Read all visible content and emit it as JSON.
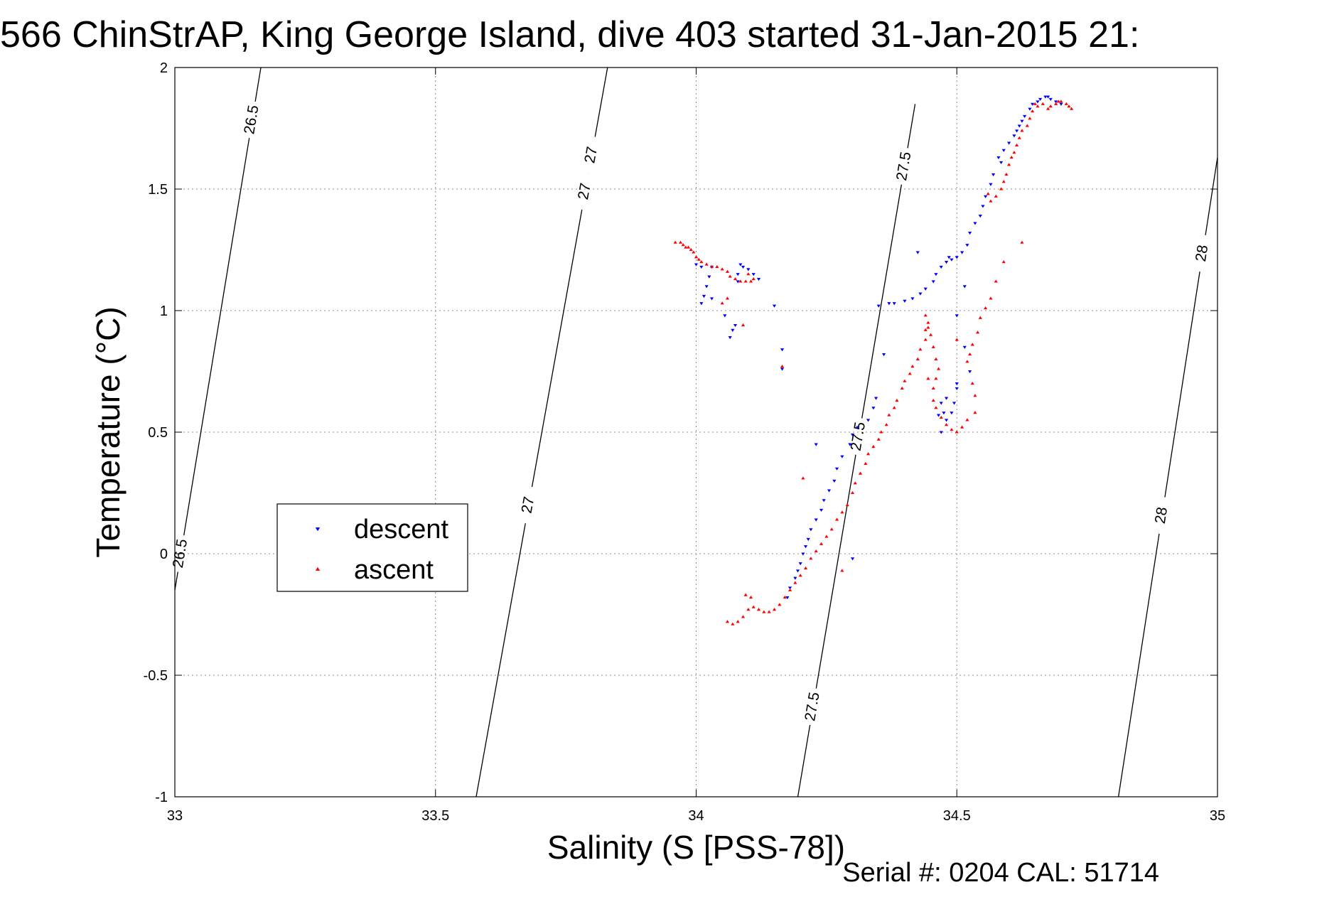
{
  "chart_data": {
    "type": "scatter",
    "title": "566 ChinStrAP, King George Island, dive 403 started 31-Jan-2015 21:",
    "xlabel": "Salinity (S [PSS-78])",
    "ylabel": "Temperature (°C)",
    "footer": "Serial #: 0204  CAL: 51714",
    "xlim": [
      33,
      35
    ],
    "ylim": [
      -1,
      2
    ],
    "xticks": [
      "33",
      "33.5",
      "34",
      "34.5",
      "35"
    ],
    "yticks": [
      "-1",
      "-0.5",
      "0",
      "0.5",
      "1",
      "1.5",
      "2"
    ],
    "grid": true,
    "legend_position": "middle-left",
    "contours": [
      {
        "label": "26.5",
        "points": [
          [
            33.0,
            -0.15
          ],
          [
            33.165,
            2.0
          ]
        ],
        "labels_at": [
          0.9,
          0.07
        ]
      },
      {
        "label": "27",
        "points": [
          [
            33.578,
            -1.0
          ],
          [
            33.83,
            2.0
          ]
        ],
        "labels_at": [
          0.83,
          0.4,
          0.88
        ]
      },
      {
        "label": "27.5",
        "points": [
          [
            34.195,
            -1.0
          ],
          [
            34.42,
            1.85
          ]
        ],
        "labels_at": [
          0.13,
          0.52,
          0.91
        ]
      },
      {
        "label": "28",
        "points": [
          [
            34.81,
            -1.0
          ],
          [
            35.0,
            1.63
          ]
        ],
        "labels_at": [
          0.44,
          0.85
        ]
      }
    ],
    "series": [
      {
        "name": "descent",
        "color": "#0000ff",
        "marker": "triangle-down",
        "points": [
          [
            34.67,
            1.88
          ],
          [
            34.675,
            1.88
          ],
          [
            34.68,
            1.87
          ],
          [
            34.66,
            1.87
          ],
          [
            34.69,
            1.86
          ],
          [
            34.655,
            1.86
          ],
          [
            34.7,
            1.85
          ],
          [
            34.645,
            1.85
          ],
          [
            34.64,
            1.83
          ],
          [
            34.63,
            1.8
          ],
          [
            34.625,
            1.78
          ],
          [
            34.62,
            1.76
          ],
          [
            34.615,
            1.74
          ],
          [
            34.61,
            1.72
          ],
          [
            34.6,
            1.69
          ],
          [
            34.59,
            1.66
          ],
          [
            34.58,
            1.63
          ],
          [
            34.585,
            1.61
          ],
          [
            34.57,
            1.56
          ],
          [
            34.565,
            1.52
          ],
          [
            34.555,
            1.47
          ],
          [
            34.55,
            1.43
          ],
          [
            34.545,
            1.39
          ],
          [
            34.535,
            1.36
          ],
          [
            34.525,
            1.32
          ],
          [
            34.52,
            1.27
          ],
          [
            34.51,
            1.24
          ],
          [
            34.5,
            1.22
          ],
          [
            34.49,
            1.21
          ],
          [
            34.485,
            1.22
          ],
          [
            34.48,
            1.2
          ],
          [
            34.47,
            1.18
          ],
          [
            34.46,
            1.15
          ],
          [
            34.455,
            1.12
          ],
          [
            34.44,
            1.09
          ],
          [
            34.43,
            1.07
          ],
          [
            34.415,
            1.05
          ],
          [
            34.4,
            1.04
          ],
          [
            34.38,
            1.03
          ],
          [
            34.37,
            1.03
          ],
          [
            34.35,
            1.02
          ],
          [
            34.425,
            1.24
          ],
          [
            34.515,
            1.1
          ],
          [
            34.5,
            0.98
          ],
          [
            34.515,
            0.85
          ],
          [
            34.525,
            0.75
          ],
          [
            34.5,
            0.7
          ],
          [
            34.48,
            0.64
          ],
          [
            34.475,
            0.58
          ],
          [
            34.48,
            0.55
          ],
          [
            34.49,
            0.58
          ],
          [
            34.495,
            0.62
          ],
          [
            34.5,
            0.68
          ],
          [
            34.47,
            0.62
          ],
          [
            34.465,
            0.57
          ],
          [
            34.47,
            0.5
          ],
          [
            34.36,
            0.82
          ],
          [
            34.345,
            0.64
          ],
          [
            34.34,
            0.6
          ],
          [
            34.33,
            0.55
          ],
          [
            34.31,
            0.52
          ],
          [
            34.3,
            0.49
          ],
          [
            34.295,
            0.45
          ],
          [
            34.28,
            0.4
          ],
          [
            34.27,
            0.35
          ],
          [
            34.265,
            0.3
          ],
          [
            34.255,
            0.26
          ],
          [
            34.245,
            0.22
          ],
          [
            34.24,
            0.18
          ],
          [
            34.23,
            0.14
          ],
          [
            34.22,
            0.1
          ],
          [
            34.215,
            0.06
          ],
          [
            34.21,
            0.03
          ],
          [
            34.205,
            0.0
          ],
          [
            34.2,
            -0.04
          ],
          [
            34.195,
            -0.07
          ],
          [
            34.19,
            -0.1
          ],
          [
            34.18,
            -0.14
          ],
          [
            34.175,
            -0.18
          ],
          [
            34.23,
            0.45
          ],
          [
            34.3,
            -0.02
          ],
          [
            34.03,
            1.18
          ],
          [
            34.025,
            1.14
          ],
          [
            34.02,
            1.1
          ],
          [
            34.015,
            1.06
          ],
          [
            34.01,
            1.03
          ],
          [
            34.03,
            1.05
          ],
          [
            34.01,
            1.18
          ],
          [
            34.0,
            1.19
          ],
          [
            34.055,
            0.98
          ],
          [
            34.07,
            0.92
          ],
          [
            34.065,
            0.89
          ],
          [
            34.075,
            0.94
          ],
          [
            34.08,
            1.15
          ],
          [
            34.085,
            1.19
          ],
          [
            34.09,
            1.18
          ],
          [
            34.1,
            1.17
          ],
          [
            34.11,
            1.15
          ],
          [
            34.12,
            1.13
          ],
          [
            34.08,
            1.12
          ],
          [
            34.15,
            1.02
          ],
          [
            34.165,
            0.84
          ],
          [
            34.165,
            0.76
          ]
        ]
      },
      {
        "name": "ascent",
        "color": "#ff0000",
        "marker": "triangle-up",
        "points": [
          [
            33.96,
            1.28
          ],
          [
            33.97,
            1.28
          ],
          [
            33.975,
            1.27
          ],
          [
            33.98,
            1.26
          ],
          [
            33.985,
            1.26
          ],
          [
            33.99,
            1.25
          ],
          [
            33.995,
            1.24
          ],
          [
            34.0,
            1.22
          ],
          [
            34.005,
            1.21
          ],
          [
            34.01,
            1.2
          ],
          [
            34.02,
            1.19
          ],
          [
            34.03,
            1.18
          ],
          [
            34.04,
            1.18
          ],
          [
            34.05,
            1.17
          ],
          [
            34.06,
            1.16
          ],
          [
            34.065,
            1.14
          ],
          [
            34.075,
            1.13
          ],
          [
            34.085,
            1.12
          ],
          [
            34.095,
            1.12
          ],
          [
            34.105,
            1.12
          ],
          [
            34.11,
            1.13
          ],
          [
            34.1,
            1.15
          ],
          [
            34.05,
            1.03
          ],
          [
            34.06,
            1.05
          ],
          [
            34.09,
            0.94
          ],
          [
            34.165,
            0.77
          ],
          [
            34.72,
            1.83
          ],
          [
            34.715,
            1.84
          ],
          [
            34.71,
            1.85
          ],
          [
            34.7,
            1.86
          ],
          [
            34.695,
            1.86
          ],
          [
            34.69,
            1.85
          ],
          [
            34.68,
            1.84
          ],
          [
            34.675,
            1.83
          ],
          [
            34.665,
            1.85
          ],
          [
            34.655,
            1.84
          ],
          [
            34.65,
            1.85
          ],
          [
            34.645,
            1.82
          ],
          [
            34.64,
            1.79
          ],
          [
            34.635,
            1.76
          ],
          [
            34.625,
            1.74
          ],
          [
            34.62,
            1.71
          ],
          [
            34.615,
            1.68
          ],
          [
            34.61,
            1.65
          ],
          [
            34.605,
            1.63
          ],
          [
            34.6,
            1.6
          ],
          [
            34.595,
            1.56
          ],
          [
            34.59,
            1.53
          ],
          [
            34.585,
            1.5
          ],
          [
            34.575,
            1.47
          ],
          [
            34.565,
            1.45
          ],
          [
            34.56,
            1.48
          ],
          [
            34.625,
            1.28
          ],
          [
            34.59,
            1.2
          ],
          [
            34.575,
            1.12
          ],
          [
            34.565,
            1.05
          ],
          [
            34.555,
            1.01
          ],
          [
            34.545,
            0.97
          ],
          [
            34.54,
            0.91
          ],
          [
            34.53,
            0.86
          ],
          [
            34.525,
            0.82
          ],
          [
            34.52,
            0.79
          ],
          [
            34.53,
            0.7
          ],
          [
            34.535,
            0.65
          ],
          [
            34.535,
            0.58
          ],
          [
            34.52,
            0.55
          ],
          [
            34.51,
            0.52
          ],
          [
            34.5,
            0.5
          ],
          [
            34.49,
            0.51
          ],
          [
            34.48,
            0.53
          ],
          [
            34.47,
            0.56
          ],
          [
            34.46,
            0.6
          ],
          [
            34.455,
            0.63
          ],
          [
            34.455,
            0.68
          ],
          [
            34.46,
            0.72
          ],
          [
            34.465,
            0.76
          ],
          [
            34.46,
            0.8
          ],
          [
            34.455,
            0.85
          ],
          [
            34.45,
            0.9
          ],
          [
            34.445,
            0.95
          ],
          [
            34.44,
            0.98
          ],
          [
            34.445,
            0.93
          ],
          [
            34.44,
            0.88
          ],
          [
            34.43,
            0.84
          ],
          [
            34.425,
            0.8
          ],
          [
            34.415,
            0.77
          ],
          [
            34.41,
            0.74
          ],
          [
            34.4,
            0.71
          ],
          [
            34.395,
            0.68
          ],
          [
            34.385,
            0.63
          ],
          [
            34.38,
            0.6
          ],
          [
            34.37,
            0.57
          ],
          [
            34.365,
            0.53
          ],
          [
            34.355,
            0.5
          ],
          [
            34.35,
            0.47
          ],
          [
            34.34,
            0.44
          ],
          [
            34.33,
            0.41
          ],
          [
            34.325,
            0.37
          ],
          [
            34.315,
            0.33
          ],
          [
            34.305,
            0.29
          ],
          [
            34.3,
            0.25
          ],
          [
            34.29,
            0.2
          ],
          [
            34.28,
            0.17
          ],
          [
            34.27,
            0.14
          ],
          [
            34.26,
            0.1
          ],
          [
            34.25,
            0.07
          ],
          [
            34.24,
            0.04
          ],
          [
            34.23,
            0.01
          ],
          [
            34.22,
            -0.02
          ],
          [
            34.21,
            -0.06
          ],
          [
            34.2,
            -0.09
          ],
          [
            34.19,
            -0.12
          ],
          [
            34.18,
            -0.15
          ],
          [
            34.17,
            -0.18
          ],
          [
            34.16,
            -0.21
          ],
          [
            34.15,
            -0.23
          ],
          [
            34.14,
            -0.24
          ],
          [
            34.13,
            -0.24
          ],
          [
            34.12,
            -0.23
          ],
          [
            34.11,
            -0.22
          ],
          [
            34.1,
            -0.23
          ],
          [
            34.09,
            -0.26
          ],
          [
            34.08,
            -0.28
          ],
          [
            34.07,
            -0.29
          ],
          [
            34.06,
            -0.28
          ],
          [
            34.105,
            -0.18
          ],
          [
            34.095,
            -0.17
          ],
          [
            34.205,
            0.31
          ],
          [
            34.28,
            -0.07
          ],
          [
            34.445,
            0.72
          ],
          [
            34.5,
            0.88
          ],
          [
            34.44,
            0.92
          ]
        ]
      }
    ]
  }
}
